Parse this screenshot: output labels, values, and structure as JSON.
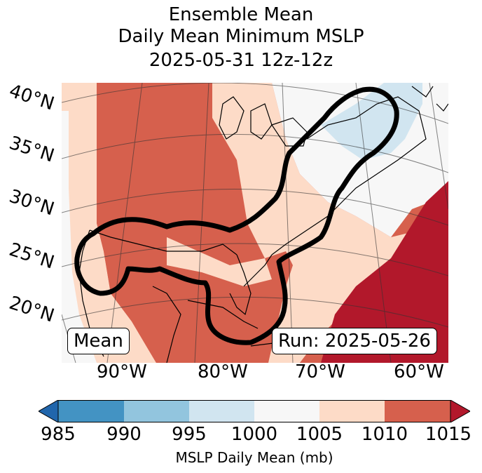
{
  "title": {
    "line1": "Ensemble Mean",
    "line2": "Daily Mean Minimum MSLP",
    "line3": "2025-05-31 12z-12z"
  },
  "map": {
    "lat_labels": [
      "40°N",
      "35°N",
      "30°N",
      "25°N",
      "20°N"
    ],
    "lon_labels": [
      "90°W",
      "80°W",
      "70°W",
      "60°W"
    ],
    "mean_box": "Mean",
    "run_box": "Run: 2025-05-26"
  },
  "colorbar": {
    "ticks": [
      "985",
      "990",
      "995",
      "1000",
      "1005",
      "1010",
      "1015"
    ],
    "label": "MSLP Daily Mean (mb)",
    "colors": {
      "below": "#2166ac",
      "985_990": "#4393c3",
      "990_995": "#92c5de",
      "995_1000": "#d1e5f0",
      "1000_1005": "#f7f7f7",
      "1005_1010": "#fddbc7",
      "1010_1015": "#d6604d",
      "above": "#b2182b"
    }
  },
  "chart_data": {
    "type": "heatmap",
    "title": "Ensemble Mean Daily Mean Minimum MSLP 2025-05-31 12z-12z",
    "colorbar_label": "MSLP Daily Mean (mb)",
    "levels": [
      985,
      990,
      995,
      1000,
      1005,
      1010,
      1015
    ],
    "extend": "both",
    "lat_range": [
      15,
      41
    ],
    "lon_range": [
      -97,
      -60
    ],
    "annotations": [
      "Mean",
      "Run: 2025-05-26"
    ]
  }
}
